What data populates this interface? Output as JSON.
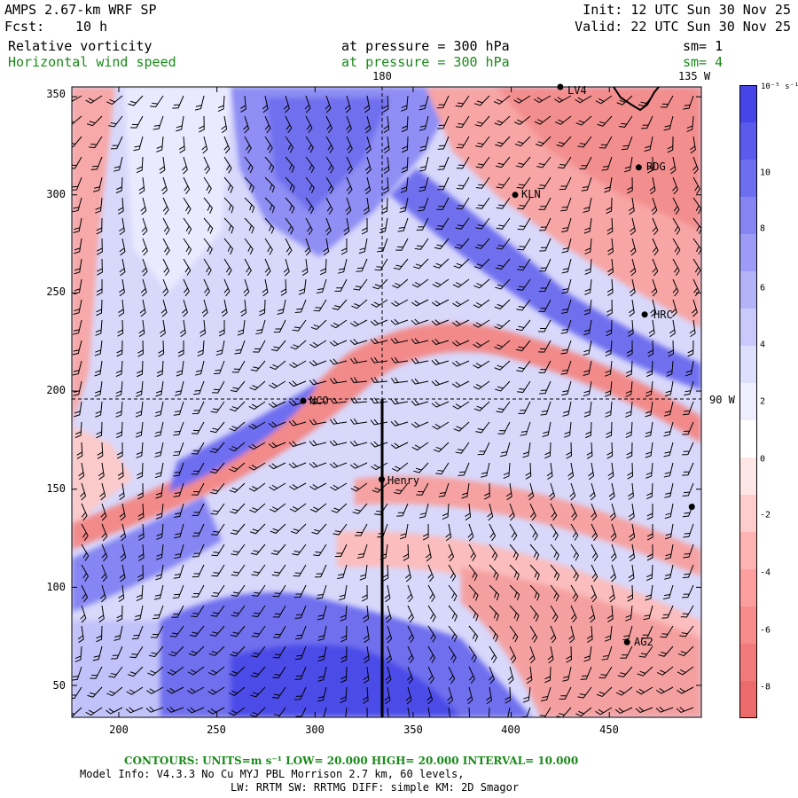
{
  "header": {
    "model": "AMPS 2.67-km WRF SP",
    "fcst_label": "Fcst:",
    "fcst_value": "10 h",
    "init": "Init: 12 UTC Sun 30 Nov 25",
    "valid": "Valid: 22 UTC Sun 30 Nov 25",
    "field1": "Relative vorticity",
    "field1_level": "at pressure =  300 hPa",
    "field1_sm": "sm= 1",
    "field2": "Horizontal wind speed",
    "field2_level": "at pressure =  300 hPa",
    "field2_sm": "sm= 4"
  },
  "map": {
    "meridian_labels": [
      "180",
      "135 W",
      "90 W"
    ],
    "x_ticks": [
      "200",
      "250",
      "300",
      "350",
      "400",
      "450"
    ],
    "y_ticks": [
      "350",
      "300",
      "250",
      "200",
      "150",
      "100",
      "50"
    ],
    "stations": [
      {
        "name": "NCO",
        "x": 294,
        "y": 195
      },
      {
        "name": "Henry",
        "x": 334,
        "y": 155
      },
      {
        "name": "KLN",
        "x": 402,
        "y": 300
      },
      {
        "name": "RDG",
        "x": 465,
        "y": 314
      },
      {
        "name": "HRC",
        "x": 468,
        "y": 239
      },
      {
        "name": "AG2",
        "x": 459,
        "y": 72
      },
      {
        "name": "LV4",
        "x": 425,
        "y": 355
      },
      {
        "name": "",
        "x": 492,
        "y": 141
      }
    ]
  },
  "colorbar": {
    "unit": "10⁻⁵ s⁻¹",
    "labels": [
      "10",
      "8",
      "6",
      "4",
      "2",
      "0",
      "-2",
      "-4",
      "-6",
      "-8"
    ],
    "colors": [
      "#4646e8",
      "#5a5aec",
      "#6e6ef0",
      "#8585f3",
      "#9c9cf6",
      "#b3b3f8",
      "#c9c9fb",
      "#dedefd",
      "#eeeeff",
      "#ffffff",
      "#ffe6e6",
      "#ffcccc",
      "#ffb3b3",
      "#fd9f9f",
      "#f88b8b",
      "#f37a7a",
      "#ee6b6b"
    ]
  },
  "footer": {
    "contours": "CONTOURS:  UNITS=m s⁻¹  LOW=  20.000      HIGH=  20.000      INTERVAL=   10.000",
    "model_info": "Model Info: V4.3.3    No Cu    MYJ PBL  Morrison           2.7 km,  60 levels,",
    "physics": "LW: RRTM SW: RRTMG   DIFF: simple KM: 2D Smagor"
  }
}
